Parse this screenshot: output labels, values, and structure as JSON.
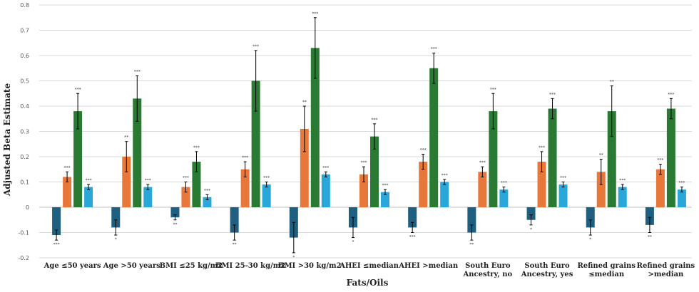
{
  "chart_data": {
    "type": "bar",
    "xlabel": "Fats/Oils",
    "ylabel": "Adjusted Beta Estimate",
    "ylim": [
      -0.2,
      0.8
    ],
    "yticks": [
      -0.2,
      -0.1,
      0,
      0.1,
      0.2,
      0.3,
      0.4,
      0.5,
      0.6,
      0.7,
      0.8
    ],
    "grid": true,
    "legend": "none",
    "categories": [
      [
        "Age ≤50 years"
      ],
      [
        "Age >50 years"
      ],
      [
        "BMI  ≤25 kg/m2"
      ],
      [
        "BMI 25-30 kg/m2"
      ],
      [
        "BMI >30 kg/m2"
      ],
      [
        "AHEI ≤median"
      ],
      [
        "AHEI >median"
      ],
      [
        "South Euro",
        "Ancestry, no"
      ],
      [
        "South Euro",
        "Ancestry, yes"
      ],
      [
        "Refined grains",
        "≤median"
      ],
      [
        "Refined grains",
        ">median"
      ]
    ],
    "series": [
      {
        "color": "#1f5f7f",
        "values": [
          -0.11,
          -0.08,
          -0.04,
          -0.1,
          -0.12,
          -0.08,
          -0.08,
          -0.1,
          -0.05,
          -0.08,
          -0.07
        ],
        "err": [
          0.02,
          0.03,
          0.01,
          0.03,
          0.06,
          0.04,
          0.02,
          0.03,
          0.02,
          0.03,
          0.03
        ],
        "sig": [
          "***",
          "*",
          "**",
          "**",
          "*",
          "*",
          "***",
          "**",
          "*",
          "*",
          "**"
        ]
      },
      {
        "color": "#e8773a",
        "values": [
          0.12,
          0.2,
          0.08,
          0.15,
          0.31,
          0.13,
          0.18,
          0.14,
          0.18,
          0.14,
          0.15
        ],
        "err": [
          0.02,
          0.06,
          0.02,
          0.03,
          0.09,
          0.03,
          0.03,
          0.02,
          0.04,
          0.05,
          0.02
        ],
        "sig": [
          "***",
          "**",
          "***",
          "***",
          "**",
          "***",
          "***",
          "***",
          "***",
          "**",
          "***"
        ]
      },
      {
        "color": "#2a7a33",
        "values": [
          0.38,
          0.43,
          0.18,
          0.5,
          0.63,
          0.28,
          0.55,
          0.38,
          0.39,
          0.38,
          0.39
        ],
        "err": [
          0.07,
          0.09,
          0.04,
          0.12,
          0.12,
          0.05,
          0.06,
          0.07,
          0.04,
          0.1,
          0.04
        ],
        "sig": [
          "***",
          "***",
          "***",
          "***",
          "***",
          "***",
          "***",
          "***",
          "***",
          "**",
          "***"
        ]
      },
      {
        "color": "#29a7d9",
        "values": [
          0.08,
          0.08,
          0.04,
          0.09,
          0.13,
          0.06,
          0.1,
          0.07,
          0.09,
          0.08,
          0.07
        ],
        "err": [
          0.01,
          0.01,
          0.01,
          0.01,
          0.01,
          0.01,
          0.01,
          0.01,
          0.01,
          0.01,
          0.01
        ],
        "sig": [
          "***",
          "***",
          "***",
          "***",
          "***",
          "***",
          "***",
          "***",
          "***",
          "***",
          "***"
        ]
      }
    ]
  }
}
